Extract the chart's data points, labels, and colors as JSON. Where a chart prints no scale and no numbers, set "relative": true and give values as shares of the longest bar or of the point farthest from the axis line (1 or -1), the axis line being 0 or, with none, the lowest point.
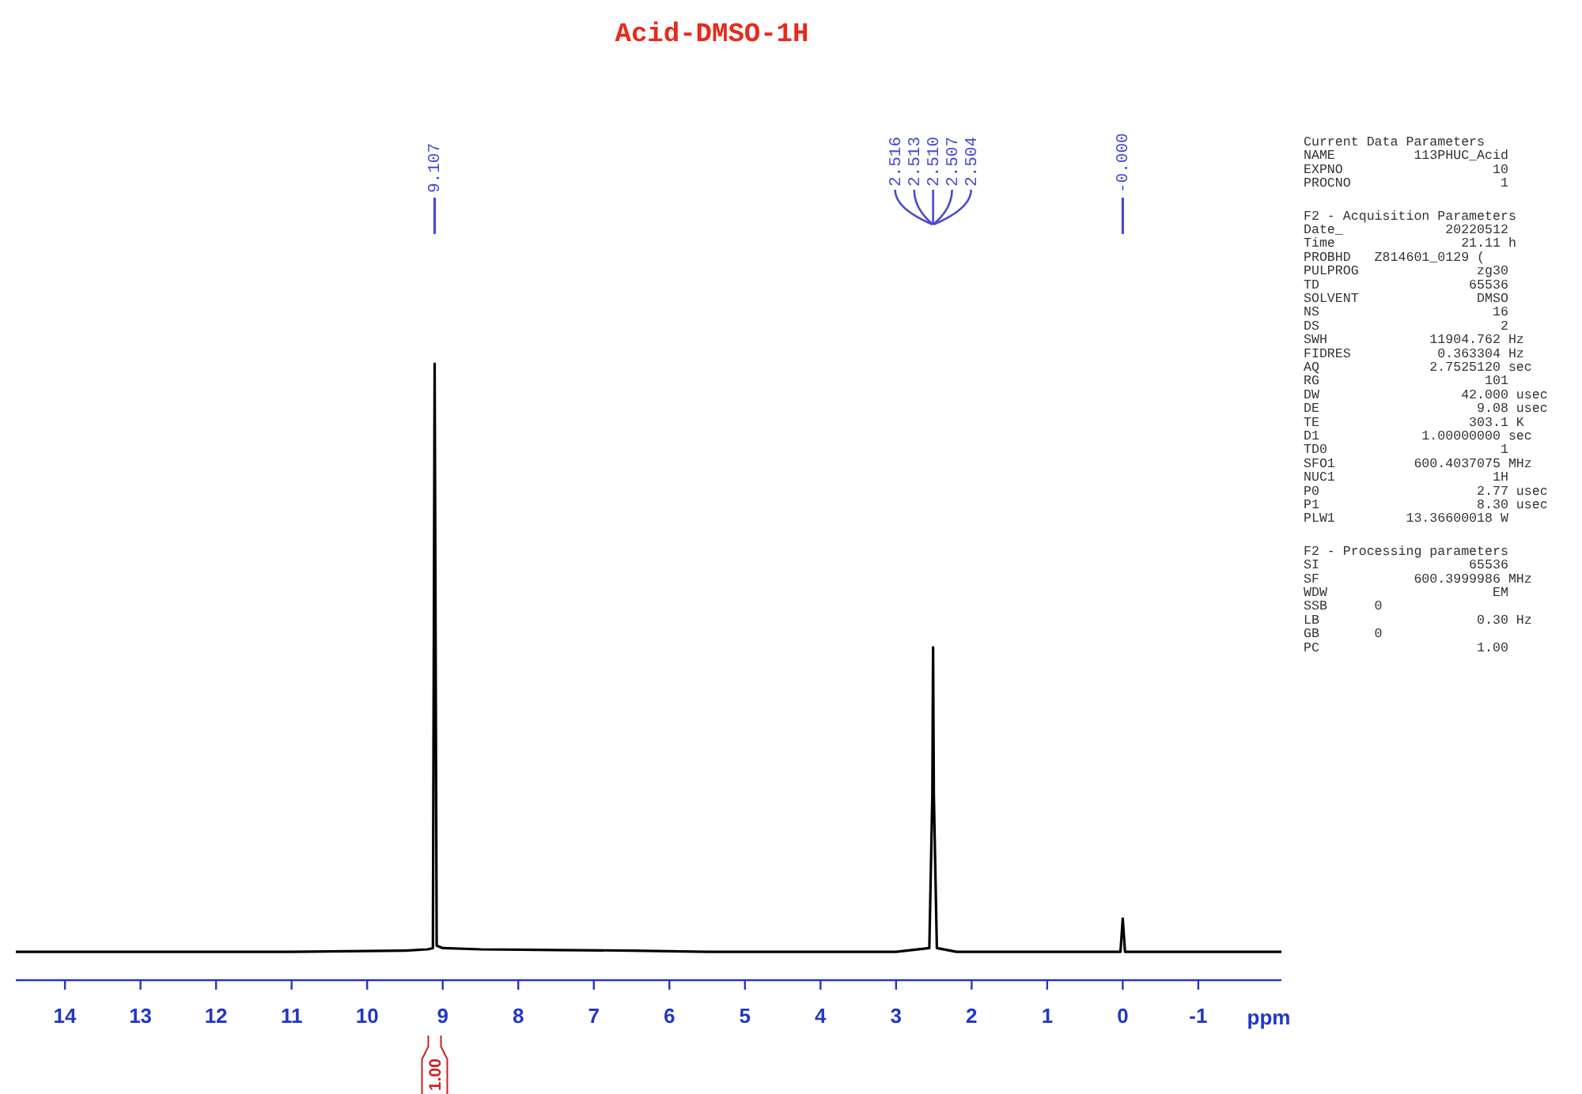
{
  "chart_data": {
    "type": "line",
    "title": "Acid-DMSO-1H",
    "xlabel": "ppm",
    "relative": true,
    "xlim": [
      14.65,
      -2.1
    ],
    "xticks": [
      14,
      13,
      12,
      11,
      10,
      9,
      8,
      7,
      6,
      5,
      4,
      3,
      2,
      1,
      0,
      -1
    ],
    "tick_labels": "x",
    "series": [
      {
        "color": "#000000",
        "x": [
          14.65,
          11.0,
          9.5,
          9.2,
          9.13,
          9.107,
          9.08,
          9.0,
          8.5,
          7.5,
          6.5,
          5.5,
          3.0,
          2.56,
          2.52,
          2.51,
          2.5,
          2.46,
          2.2,
          0.03,
          0.0,
          -0.03,
          -2.1
        ],
        "values": [
          0.046,
          0.046,
          0.048,
          0.05,
          0.052,
          1,
          0.056,
          0.052,
          0.05,
          0.049,
          0.048,
          0.046,
          0.046,
          0.052,
          0.3,
          0.54,
          0.3,
          0.052,
          0.046,
          0.046,
          0.1,
          0.046,
          0.046
        ]
      }
    ],
    "annotations": [
      "9.107",
      "2.516",
      "2.513",
      "2.510",
      "2.507",
      "2.504",
      "-0.000",
      "1.00",
      "Current Data Parameters\nNAME          113PHUC_Acid\nEXPNO                   10\nPROCNO                   1",
      "F2 - Acquisition Parameters\nDate_             20220512\nTime                21.11 h\nPROBHD   Z814601_0129 (\nPULPROG               zg30\nTD                   65536\nSOLVENT               DMSO\nNS                      16\nDS                       2\nSWH             11904.762 Hz\nFIDRES           0.363304 Hz\nAQ              2.7525120 sec\nRG                     101\nDW                  42.000 usec\nDE                    9.08 usec\nTE                   303.1 K\nD1             1.00000000 sec\nTD0                      1\nSFO1          600.4037075 MHz\nNUC1                    1H\nP0                    2.77 usec\nP1                    8.30 usec\nPLW1         13.36600018 W",
      "F2 - Processing parameters\nSI                   65536\nSF            600.3999986 MHz\nWDW                     EM\nSSB      0\nLB                    0.30 Hz\nGB       0\nPC                    1.00"
    ]
  }
}
